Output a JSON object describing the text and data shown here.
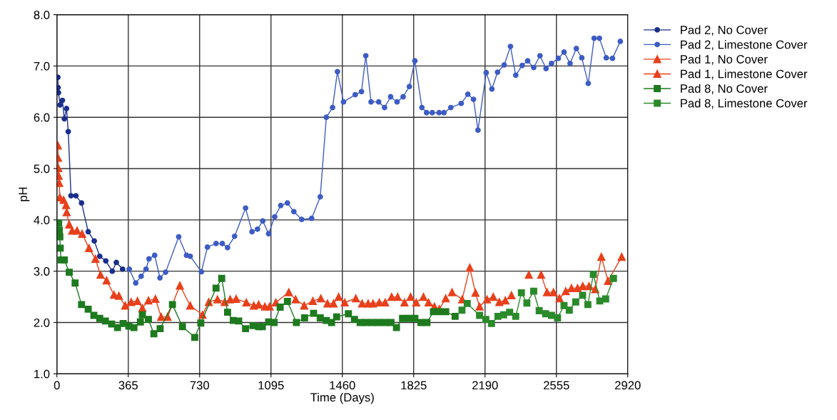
{
  "chart_data": {
    "type": "line",
    "xlabel": "Time (Days)",
    "ylabel": "pH",
    "xlim": [
      0,
      2920
    ],
    "xticks": [
      0,
      365,
      730,
      1095,
      1460,
      1825,
      2190,
      2555,
      2920
    ],
    "ylim": [
      1.0,
      8.0
    ],
    "yticks": [
      {
        "value": 1.0,
        "label": "1.0"
      },
      {
        "value": 2.0,
        "label": "2.0"
      },
      {
        "value": 3.0,
        "label": "3.0"
      },
      {
        "value": 4.0,
        "label": "4.0"
      },
      {
        "value": 5.0,
        "label": "5.0"
      },
      {
        "value": 6.0,
        "label": "6.0"
      },
      {
        "value": 7.0,
        "label": "7.0"
      },
      {
        "value": 8.0,
        "label": "8.0"
      }
    ],
    "grid": true,
    "legend": "right",
    "line_style": "solid",
    "series": [
      {
        "name": "Pad 2, No Cover",
        "color": "#1a2f8c",
        "marker": "circle",
        "x": [
          5,
          6,
          8,
          16,
          28,
          38,
          49,
          58,
          72,
          97,
          126,
          160,
          191,
          219,
          250,
          283,
          304,
          336
        ],
        "values": [
          6.78,
          6.58,
          6.48,
          6.24,
          6.33,
          5.97,
          6.17,
          5.72,
          4.47,
          4.47,
          4.33,
          3.77,
          3.59,
          3.29,
          3.2,
          3.0,
          3.17,
          3.04
        ]
      },
      {
        "name": "Pad 2, Limestone Cover",
        "color": "#3d5cc4",
        "marker": "circle",
        "x": [
          370,
          403,
          431,
          456,
          471,
          500,
          527,
          556,
          623,
          663,
          682,
          739,
          770,
          814,
          846,
          873,
          909,
          965,
          998,
          1026,
          1053,
          1083,
          1114,
          1145,
          1179,
          1212,
          1252,
          1303,
          1347,
          1378,
          1410,
          1435,
          1466,
          1526,
          1558,
          1580,
          1607,
          1646,
          1676,
          1707,
          1740,
          1771,
          1803,
          1831,
          1867,
          1891,
          1920,
          1955,
          1980,
          2015,
          2068,
          2102,
          2131,
          2154,
          2196,
          2225,
          2254,
          2288,
          2320,
          2347,
          2380,
          2408,
          2439,
          2471,
          2502,
          2530,
          2565,
          2594,
          2625,
          2657,
          2685,
          2718,
          2748,
          2775,
          2810,
          2842,
          2882
        ],
        "values": [
          3.04,
          2.77,
          2.9,
          3.04,
          3.24,
          3.31,
          2.87,
          2.98,
          3.67,
          3.31,
          3.29,
          2.99,
          3.47,
          3.54,
          3.54,
          3.46,
          3.68,
          4.23,
          3.77,
          3.82,
          3.98,
          3.73,
          4.06,
          4.28,
          4.33,
          4.16,
          4.01,
          4.03,
          4.45,
          6.0,
          6.19,
          6.89,
          6.3,
          6.44,
          6.5,
          7.2,
          6.3,
          6.3,
          6.19,
          6.4,
          6.3,
          6.4,
          6.6,
          7.1,
          6.19,
          6.09,
          6.09,
          6.09,
          6.09,
          6.19,
          6.27,
          6.45,
          6.35,
          5.75,
          6.87,
          6.55,
          6.88,
          7.02,
          7.38,
          6.82,
          7.01,
          7.1,
          6.97,
          7.2,
          6.95,
          7.05,
          7.15,
          7.27,
          7.05,
          7.34,
          7.16,
          6.66,
          7.54,
          7.54,
          7.16,
          7.15,
          7.48
        ]
      },
      {
        "name": "Pad 1, No Cover",
        "color": "#e8401c",
        "marker": "triangle",
        "x": [
          5,
          6,
          7,
          9,
          12,
          15,
          34,
          47,
          50,
          63,
          78,
          103,
          129,
          164,
          197,
          223,
          254,
          292,
          317,
          349,
          380,
          412,
          437,
          468,
          504,
          533,
          566,
          629,
          682,
          745,
          777,
          821,
          858,
          886,
          917,
          969,
          1007,
          1032,
          1064,
          1088,
          1120,
          1186,
          1221,
          1265,
          1309,
          1350,
          1384,
          1415,
          1441,
          1472,
          1529,
          1561,
          1592,
          1617,
          1649,
          1679,
          1712,
          1743,
          1778,
          1809,
          1838,
          1875,
          1901,
          1931,
          1956,
          1989
        ],
        "values": [
          5.45,
          5.21,
          5.01,
          4.86,
          4.72,
          4.44,
          4.39,
          4.29,
          4.15,
          3.91,
          3.79,
          3.79,
          3.73,
          3.45,
          3.24,
          2.93,
          2.82,
          2.54,
          2.52,
          2.33,
          2.4,
          2.42,
          2.28,
          2.43,
          2.46,
          2.11,
          2.11,
          2.72,
          2.33,
          2.15,
          2.4,
          2.45,
          2.4,
          2.45,
          2.46,
          2.39,
          2.33,
          2.35,
          2.31,
          2.31,
          2.39,
          2.59,
          2.45,
          2.33,
          2.42,
          2.47,
          2.37,
          2.37,
          2.5,
          2.39,
          2.47,
          2.37,
          2.37,
          2.37,
          2.39,
          2.39,
          2.5,
          2.5,
          2.39,
          2.5,
          2.39,
          2.5,
          2.39,
          2.31,
          2.26,
          2.47
        ]
      },
      {
        "name": "Pad 1, Limestone Cover",
        "color": "#e8401c",
        "marker": "triangle",
        "x": [
          2021,
          2073,
          2112,
          2141,
          2162,
          2200,
          2232,
          2263,
          2294,
          2325,
          2374,
          2414,
          2445,
          2477,
          2507,
          2540,
          2571,
          2603,
          2632,
          2663,
          2690,
          2722,
          2754,
          2785,
          2819,
          2889
        ],
        "values": [
          2.59,
          2.45,
          3.07,
          2.58,
          2.31,
          2.45,
          2.5,
          2.4,
          2.43,
          2.53,
          null,
          2.93,
          null,
          2.93,
          2.59,
          2.59,
          2.47,
          2.61,
          2.67,
          2.67,
          2.71,
          2.71,
          2.65,
          3.28,
          2.81,
          3.28
        ]
      },
      {
        "name": "Pad 8, No Cover",
        "color": "#1e7a1e",
        "marker": "square",
        "x": [
          9,
          12,
          15,
          17,
          21,
          38,
          63,
          93,
          126,
          160,
          189,
          219,
          248,
          280,
          310,
          339,
          368,
          394,
          427,
          437,
          468,
          496,
          528,
          591,
          642,
          705,
          736,
          814,
          843,
          873,
          902,
          930,
          965,
          1003,
          1032,
          1051,
          1083,
          1111,
          1142,
          1179,
          1225,
          1267,
          1313,
          1347,
          1378,
          1405,
          1431,
          1491,
          1522,
          1551,
          1580,
          1614,
          1646,
          1678,
          1709,
          1737,
          1768,
          1800,
          1831,
          1862,
          1893,
          1926,
          1957,
          1989,
          2037
        ],
        "values": [
          3.94,
          3.8,
          3.67,
          3.45,
          3.22,
          3.22,
          2.98,
          2.77,
          2.35,
          2.26,
          2.14,
          2.08,
          2.03,
          1.97,
          1.9,
          1.98,
          1.93,
          1.9,
          2.01,
          2.15,
          2.06,
          1.78,
          1.88,
          2.35,
          1.92,
          1.71,
          1.99,
          2.67,
          2.86,
          2.2,
          2.04,
          2.03,
          1.88,
          1.94,
          1.92,
          1.92,
          2.01,
          2.0,
          2.3,
          2.41,
          2.0,
          2.09,
          2.18,
          2.09,
          2.04,
          2.0,
          2.11,
          2.17,
          2.06,
          2.0,
          2.0,
          2.0,
          2.0,
          2.0,
          2.0,
          1.9,
          2.08,
          2.08,
          2.08,
          2.0,
          2.0,
          2.21,
          2.21,
          2.21,
          2.12
        ]
      },
      {
        "name": "Pad 8, Limestone Cover",
        "color": "#2a8a2a",
        "marker": "square",
        "x": [
          2072,
          2099,
          2162,
          2194,
          2223,
          2256,
          2285,
          2316,
          2347,
          2376,
          2404,
          2439,
          2467,
          2500,
          2530,
          2561,
          2594,
          2621,
          2654,
          2689,
          2716,
          2744,
          2777,
          2807,
          2847
        ],
        "values": [
          2.24,
          2.37,
          2.14,
          2.06,
          1.98,
          2.12,
          2.15,
          2.2,
          2.12,
          2.58,
          2.38,
          2.61,
          2.23,
          2.17,
          2.14,
          2.09,
          2.33,
          2.24,
          2.4,
          2.53,
          2.35,
          2.94,
          2.42,
          2.46,
          2.86
        ]
      }
    ]
  }
}
